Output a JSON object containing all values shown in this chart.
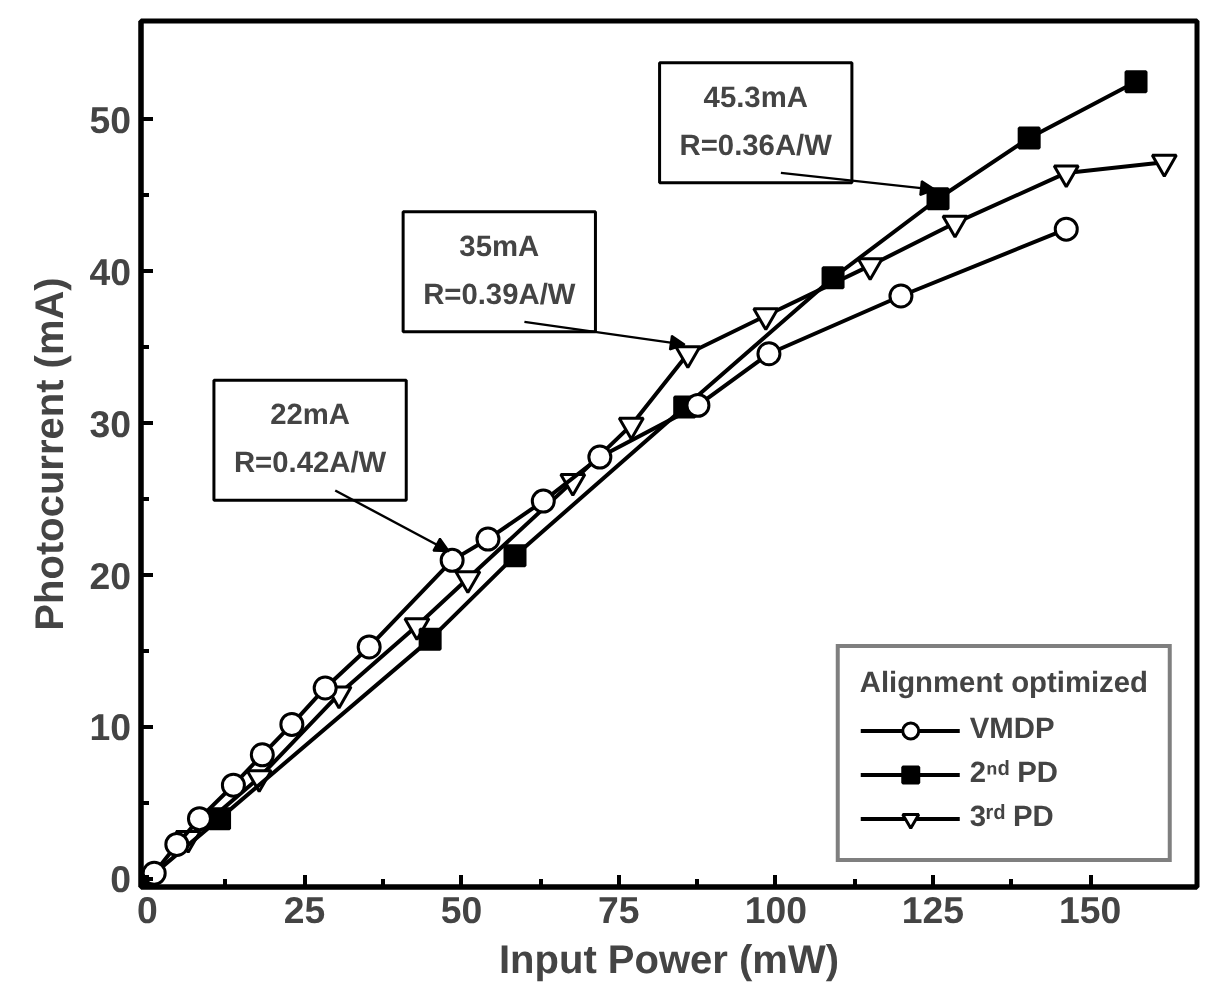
{
  "chart_data": {
    "type": "line",
    "xlabel": "Input Power (mW)",
    "ylabel": "Photocurrent (mA)",
    "xlim": [
      -1,
      167
    ],
    "ylim": [
      -0.5,
      56.5
    ],
    "xticks": [
      0,
      25,
      50,
      75,
      100,
      125,
      150
    ],
    "yticks": [
      0,
      10,
      20,
      30,
      40,
      50
    ],
    "grid": false,
    "legend": "bottom right",
    "legend_title": "Alignment optimized",
    "line_style": "solid",
    "series": [
      {
        "name": "VMDP",
        "color": "#000000",
        "marker": "circle",
        "x": [
          1.1,
          4.7,
          8.3,
          13.7,
          18.3,
          23,
          28.3,
          35.3,
          48.5,
          54.2,
          63,
          72,
          87.6,
          98.9,
          119.9,
          146.2
        ],
        "values": [
          0.4,
          2.3,
          4.0,
          6.2,
          8.2,
          10.2,
          12.6,
          15.3,
          21.0,
          22.4,
          24.9,
          27.8,
          31.2,
          34.6,
          38.4,
          42.8
        ]
      },
      {
        "name": "2ⁿᵈ PD",
        "color": "#000000",
        "marker": "square",
        "x": [
          0,
          11.5,
          45,
          58.5,
          85.5,
          109.1,
          125.8,
          140.3,
          157.3
        ],
        "values": [
          0,
          4.0,
          15.8,
          21.3,
          31.1,
          39.6,
          44.8,
          48.8,
          52.5
        ]
      },
      {
        "name": "3ʳᵈ PD",
        "color": "#000000",
        "marker": "triangle",
        "x": [
          6.5,
          17.8,
          30.5,
          42.9,
          51,
          67.7,
          77,
          86,
          98.4,
          115,
          128.5,
          146.2,
          161.8
        ],
        "values": [
          2.7,
          6.7,
          12.2,
          16.7,
          19.8,
          26.2,
          29.9,
          34.6,
          37.1,
          40.4,
          43.2,
          46.5,
          47.2
        ]
      }
    ],
    "annotations": [
      {
        "text": "22mA\nR=0.42A/W",
        "x": 48.5,
        "y": 21.0
      },
      {
        "text": "35mA\nR=0.39A/W",
        "x": 86,
        "y": 34.6
      },
      {
        "text": "45.3mA\nR=0.36A/W",
        "x": 125.8,
        "y": 44.8
      }
    ]
  }
}
